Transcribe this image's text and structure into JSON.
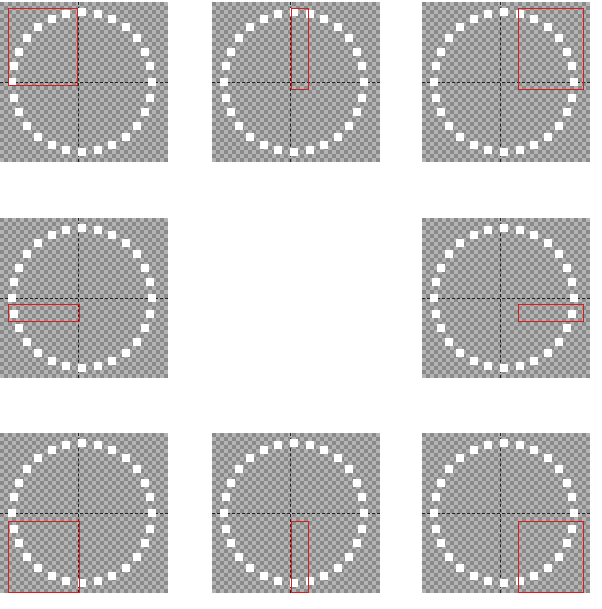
{
  "colors": {
    "background": "#ffffff",
    "checker_light": "#b4b4b4",
    "checker_dark": "#8a8a8a",
    "dot": "#ffffff",
    "guide": "#222222",
    "selection": "#d62020"
  },
  "panels": [
    {
      "selection_region": "top-left"
    },
    {
      "selection_region": "top-center"
    },
    {
      "selection_region": "top-right"
    },
    {
      "selection_region": "middle-left"
    },
    {
      "selection_region": "middle-right"
    },
    {
      "selection_region": "bottom-left"
    },
    {
      "selection_region": "bottom-center"
    },
    {
      "selection_region": "bottom-right"
    }
  ]
}
